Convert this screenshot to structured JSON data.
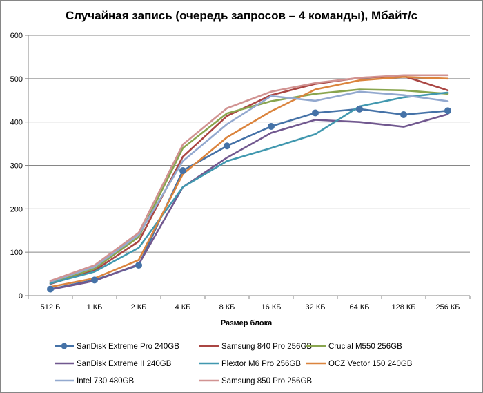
{
  "chart_data": {
    "type": "line",
    "title": "Случайная запись (очередь запросов – 4 команды), Мбайт/с",
    "xlabel": "Размер блока",
    "ylabel": "",
    "categories": [
      "512 Б",
      "1 КБ",
      "2 КБ",
      "4 КБ",
      "8 КБ",
      "16 КБ",
      "32 КБ",
      "64 КБ",
      "128 КБ",
      "256 КБ"
    ],
    "ylim": [
      0,
      600
    ],
    "yticks": [
      0,
      100,
      200,
      300,
      400,
      500,
      600
    ],
    "grid": true,
    "legend": "bottom",
    "series": [
      {
        "name": "SanDisk Extreme Pro 240GB",
        "color": "#4572a7",
        "marker": "circle",
        "values": [
          15,
          36,
          70,
          288,
          345,
          390,
          421,
          430,
          417,
          426
        ]
      },
      {
        "name": "Samsung 840 Pro 256GB",
        "color": "#aa4643",
        "marker": "none",
        "values": [
          27,
          58,
          125,
          320,
          414,
          462,
          488,
          502,
          506,
          473
        ]
      },
      {
        "name": "Crucial M550 256GB",
        "color": "#89a54e",
        "marker": "none",
        "values": [
          30,
          62,
          135,
          340,
          420,
          448,
          465,
          475,
          473,
          465
        ]
      },
      {
        "name": "SanDisk Extreme II 240GB",
        "color": "#71588f",
        "marker": "none",
        "values": [
          14,
          34,
          72,
          250,
          318,
          375,
          405,
          400,
          389,
          418
        ]
      },
      {
        "name": "Plextor M6 Pro 256GB",
        "color": "#4198af",
        "marker": "none",
        "values": [
          28,
          55,
          110,
          250,
          310,
          340,
          372,
          436,
          457,
          468
        ]
      },
      {
        "name": "OCZ Vector 150 240GB",
        "color": "#db843d",
        "marker": "none",
        "values": [
          20,
          40,
          82,
          280,
          365,
          425,
          475,
          496,
          504,
          500
        ]
      },
      {
        "name": "Intel 730 480GB",
        "color": "#93a9cf",
        "marker": "none",
        "values": [
          32,
          66,
          140,
          310,
          395,
          460,
          449,
          470,
          462,
          448
        ]
      },
      {
        "name": "Samsung 850 Pro 256GB",
        "color": "#d19392",
        "marker": "none",
        "values": [
          34,
          70,
          145,
          348,
          432,
          470,
          490,
          502,
          508,
          508
        ]
      }
    ]
  }
}
